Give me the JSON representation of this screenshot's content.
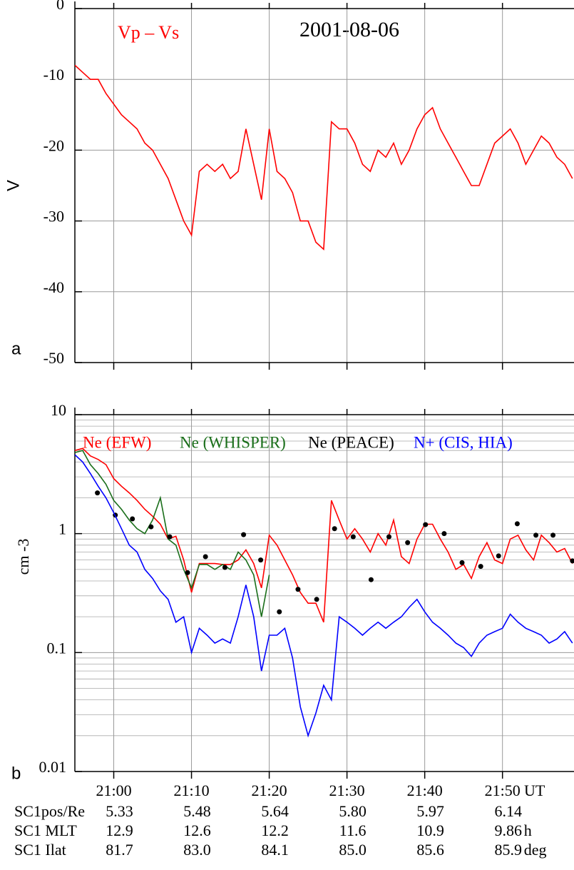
{
  "chart_data": [
    {
      "type": "line",
      "title": "2001-08-06",
      "panel_label": "a",
      "ylabel": "V",
      "xlim": [
        1255,
        1319.2
      ],
      "xticks": [
        1260,
        1270,
        1280,
        1290,
        1300,
        1310
      ],
      "ylim": [
        -50,
        0
      ],
      "yticks": [
        -50,
        -40,
        -30,
        -20,
        -10,
        0
      ],
      "grid": true,
      "log_y": false,
      "series": [
        {
          "name": "Vp – Vs",
          "color": "#ff0000",
          "type": "line",
          "x": [
            1255,
            1256,
            1257,
            1258,
            1259,
            1260,
            1261,
            1262,
            1263,
            1264,
            1265,
            1266,
            1267,
            1268,
            1269,
            1270,
            1271,
            1272,
            1273,
            1274,
            1275,
            1276,
            1277,
            1278,
            1279,
            1280,
            1281,
            1282,
            1283,
            1284,
            1285,
            1286,
            1287,
            1288,
            1289,
            1290,
            1291,
            1292,
            1293,
            1294,
            1295,
            1296,
            1297,
            1298,
            1299,
            1300,
            1301,
            1302,
            1303,
            1304,
            1305,
            1306,
            1307,
            1308,
            1309,
            1310,
            1311,
            1312,
            1313,
            1314,
            1315,
            1316,
            1317,
            1318,
            1319
          ],
          "values": [
            -8,
            -9,
            -10,
            -10,
            -12,
            -13.5,
            -15,
            -16,
            -17,
            -19,
            -20,
            -22,
            -24,
            -27,
            -30,
            -32,
            -23,
            -22,
            -23,
            -22,
            -24,
            -23,
            -17,
            -22,
            -27,
            -17,
            -23,
            -24,
            -26,
            -30,
            -30,
            -33,
            -34,
            -16,
            -17,
            -17,
            -19,
            -22,
            -23,
            -20,
            -21,
            -19,
            -22,
            -20,
            -17,
            -15,
            -14,
            -17,
            -19,
            -21,
            -23,
            -25,
            -25,
            -22,
            -19,
            -18,
            -17,
            -19,
            -22,
            -20,
            -18,
            -19,
            -21,
            -22,
            -24
          ]
        }
      ]
    },
    {
      "type": "line",
      "panel_label": "b",
      "ylabel": "cm -3",
      "x_unit": "UT",
      "xlim": [
        1255,
        1319.2
      ],
      "xticks": [
        {
          "value": 1260,
          "label": "21:00"
        },
        {
          "value": 1270,
          "label": "21:10"
        },
        {
          "value": 1280,
          "label": "21:20"
        },
        {
          "value": 1290,
          "label": "21:30"
        },
        {
          "value": 1300,
          "label": "21:40"
        },
        {
          "value": 1310,
          "label": "21:50"
        }
      ],
      "ylim": [
        0.01,
        10
      ],
      "yticks": [
        0.01,
        0.1,
        1,
        10
      ],
      "grid": true,
      "log_y": true,
      "series": [
        {
          "name": "Ne (EFW)",
          "color": "#ff0000",
          "type": "line",
          "x": [
            1255,
            1256,
            1257,
            1258,
            1259,
            1260,
            1261,
            1262,
            1263,
            1264,
            1265,
            1266,
            1267,
            1268,
            1269,
            1270,
            1271,
            1272,
            1273,
            1274,
            1275,
            1276,
            1277,
            1278,
            1279,
            1280,
            1281,
            1282,
            1283,
            1284,
            1285,
            1286,
            1287,
            1288,
            1289,
            1290,
            1291,
            1292,
            1293,
            1294,
            1295,
            1296,
            1297,
            1298,
            1299,
            1300,
            1301,
            1302,
            1303,
            1304,
            1305,
            1306,
            1307,
            1308,
            1309,
            1310,
            1311,
            1312,
            1313,
            1314,
            1315,
            1316,
            1317,
            1318,
            1319
          ],
          "values": [
            5.0,
            5.2,
            4.5,
            4.2,
            3.8,
            2.9,
            2.5,
            2.2,
            1.9,
            1.6,
            1.4,
            1.2,
            0.9,
            0.95,
            0.6,
            0.32,
            0.56,
            0.56,
            0.56,
            0.55,
            0.55,
            0.6,
            0.73,
            0.56,
            0.35,
            0.97,
            0.8,
            0.6,
            0.45,
            0.32,
            0.26,
            0.26,
            0.18,
            1.9,
            1.3,
            0.9,
            1.1,
            0.9,
            0.7,
            1.0,
            0.8,
            1.3,
            0.64,
            0.56,
            0.9,
            1.2,
            1.2,
            0.9,
            0.7,
            0.5,
            0.55,
            0.42,
            0.64,
            0.84,
            0.6,
            0.56,
            0.9,
            0.97,
            0.73,
            0.6,
            0.97,
            0.84,
            0.7,
            0.75,
            0.56
          ]
        },
        {
          "name": "Ne (WHISPER)",
          "color": "#1a6e1a",
          "type": "line",
          "x": [
            1255,
            1256,
            1257,
            1258,
            1259,
            1260,
            1261,
            1262,
            1263,
            1264,
            1265,
            1266,
            1267,
            1268,
            1269,
            1270,
            1271,
            1272,
            1273,
            1274,
            1275,
            1276,
            1277,
            1278,
            1279,
            1280
          ],
          "values": [
            4.8,
            5.0,
            3.8,
            3.2,
            2.6,
            1.9,
            1.6,
            1.3,
            1.1,
            1.0,
            1.3,
            2.0,
            0.9,
            0.8,
            0.5,
            0.35,
            0.55,
            0.55,
            0.5,
            0.55,
            0.5,
            0.7,
            0.6,
            0.45,
            0.2,
            0.45
          ]
        },
        {
          "name": "Ne (PEACE)",
          "color": "#000000",
          "type": "scatter",
          "x": [
            1257.9,
            1260.2,
            1262.4,
            1264.8,
            1267.2,
            1269.5,
            1271.8,
            1274.3,
            1276.7,
            1278.9,
            1281.3,
            1283.7,
            1286.1,
            1288.4,
            1290.8,
            1293.1,
            1295.4,
            1297.8,
            1300.1,
            1302.5,
            1304.8,
            1307.2,
            1309.5,
            1311.9,
            1314.3,
            1316.5,
            1319.0
          ],
          "values": [
            2.2,
            1.43,
            1.33,
            1.14,
            0.94,
            0.47,
            0.64,
            0.52,
            0.98,
            0.6,
            0.22,
            0.34,
            0.28,
            1.1,
            0.94,
            0.41,
            0.94,
            0.84,
            1.19,
            1.0,
            0.57,
            0.53,
            0.65,
            1.21,
            0.97,
            0.97,
            0.59
          ]
        },
        {
          "name": "N+ (CIS, HIA)",
          "color": "#0000ff",
          "type": "line",
          "x": [
            1255,
            1256,
            1257,
            1258,
            1259,
            1260,
            1261,
            1262,
            1263,
            1264,
            1265,
            1266,
            1267,
            1268,
            1269,
            1270,
            1271,
            1272,
            1273,
            1274,
            1275,
            1276,
            1277,
            1278,
            1279,
            1280,
            1281,
            1282,
            1283,
            1284,
            1285,
            1286,
            1287,
            1288,
            1289,
            1290,
            1291,
            1292,
            1293,
            1294,
            1295,
            1296,
            1297,
            1298,
            1299,
            1300,
            1301,
            1302,
            1303,
            1304,
            1305,
            1306,
            1307,
            1308,
            1309,
            1310,
            1311,
            1312,
            1313,
            1314,
            1315,
            1316,
            1317,
            1318,
            1319
          ],
          "values": [
            4.6,
            4.0,
            3.2,
            2.5,
            2.0,
            1.5,
            1.1,
            0.8,
            0.7,
            0.5,
            0.42,
            0.33,
            0.28,
            0.18,
            0.2,
            0.1,
            0.16,
            0.14,
            0.12,
            0.13,
            0.12,
            0.2,
            0.37,
            0.2,
            0.07,
            0.14,
            0.14,
            0.16,
            0.09,
            0.035,
            0.02,
            0.031,
            0.053,
            0.04,
            0.2,
            0.18,
            0.16,
            0.14,
            0.16,
            0.18,
            0.16,
            0.18,
            0.2,
            0.24,
            0.28,
            0.22,
            0.18,
            0.16,
            0.14,
            0.12,
            0.11,
            0.093,
            0.12,
            0.14,
            0.15,
            0.16,
            0.21,
            0.18,
            0.16,
            0.15,
            0.14,
            0.12,
            0.13,
            0.15,
            0.12
          ]
        }
      ],
      "ephemeris": [
        {
          "label": "SC1pos/Re",
          "values": [
            "5.33",
            "5.48",
            "5.64",
            "5.80",
            "5.97",
            "6.14"
          ]
        },
        {
          "label": "SC1 MLT",
          "values": [
            "12.9",
            "12.6",
            "12.2",
            "11.6",
            "10.9",
            "9.86"
          ],
          "unit": "h"
        },
        {
          "label": "SC1 Ilat",
          "values": [
            "81.7",
            "83.0",
            "84.1",
            "85.0",
            "85.6",
            "85.9"
          ],
          "unit": "deg"
        }
      ]
    }
  ]
}
